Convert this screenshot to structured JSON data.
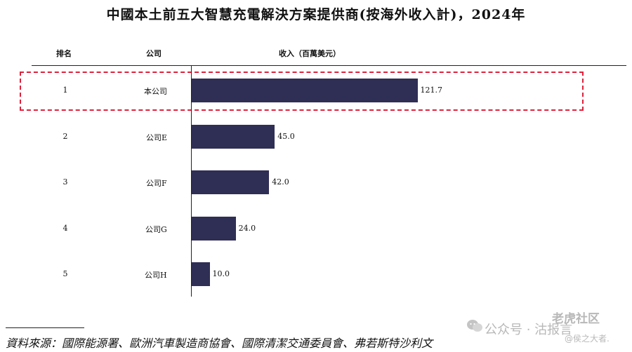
{
  "chart_data": {
    "type": "bar",
    "orientation": "horizontal",
    "title": "中國本土前五大智慧充電解決方案提供商(按海外收入計)，2024年",
    "columns": {
      "rank": "排名",
      "company": "公司",
      "revenue": "收入（百萬美元）"
    },
    "ranks": [
      "1",
      "2",
      "3",
      "4",
      "5"
    ],
    "categories": [
      "本公司",
      "公司E",
      "公司F",
      "公司G",
      "公司H"
    ],
    "values": [
      121.7,
      45.0,
      42.0,
      24.0,
      10.0
    ],
    "value_labels": [
      "121.7",
      "45.0",
      "42.0",
      "24.0",
      "10.0"
    ],
    "highlighted": "本公司",
    "bar_color": "#2f2e55",
    "highlight_color": "#e0203a",
    "grid": false
  },
  "source": "資料來源：國際能源署、歐洲汽車製造商協會、國際清潔交通委員會、弗若斯特沙利文",
  "watermark": {
    "community": "老虎社区",
    "account": "公众号 · 沽报言",
    "author": "@侯之大者.",
    "icon": "wechat-icon"
  }
}
